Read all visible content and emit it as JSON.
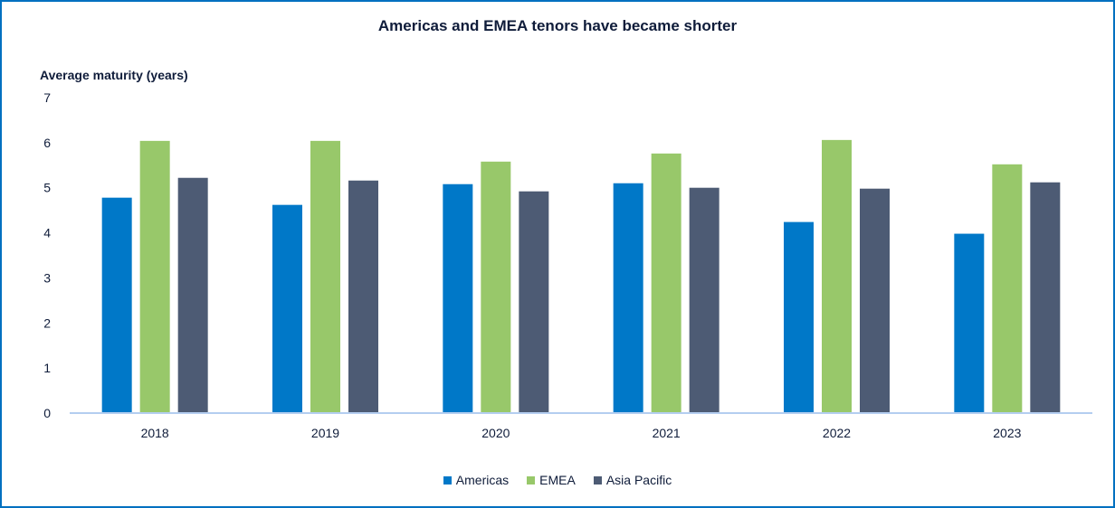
{
  "chart_data": {
    "type": "bar",
    "title": "Americas and EMEA tenors have became shorter",
    "xlabel": "",
    "ylabel": "Average maturity (years)",
    "ylim": [
      0,
      7
    ],
    "yticks": [
      "0",
      "1",
      "2",
      "3",
      "4",
      "5",
      "6",
      "7"
    ],
    "grid": false,
    "legend_position": "bottom",
    "categories": [
      "2018",
      "2019",
      "2020",
      "2021",
      "2022",
      "2023"
    ],
    "series": [
      {
        "name": "Americas",
        "color": "#0078c8",
        "values": [
          4.78,
          4.62,
          5.08,
          5.1,
          4.24,
          3.98
        ]
      },
      {
        "name": "EMEA",
        "color": "#98c86a",
        "values": [
          6.04,
          6.04,
          5.58,
          5.76,
          6.06,
          5.52
        ]
      },
      {
        "name": "Asia Pacific",
        "color": "#4d5b74",
        "values": [
          5.22,
          5.16,
          4.92,
          5.0,
          4.98,
          5.12
        ]
      }
    ]
  },
  "colors": {
    "border": "#0070c0",
    "axis": "#b4cef0",
    "text": "#0f1c3a"
  }
}
